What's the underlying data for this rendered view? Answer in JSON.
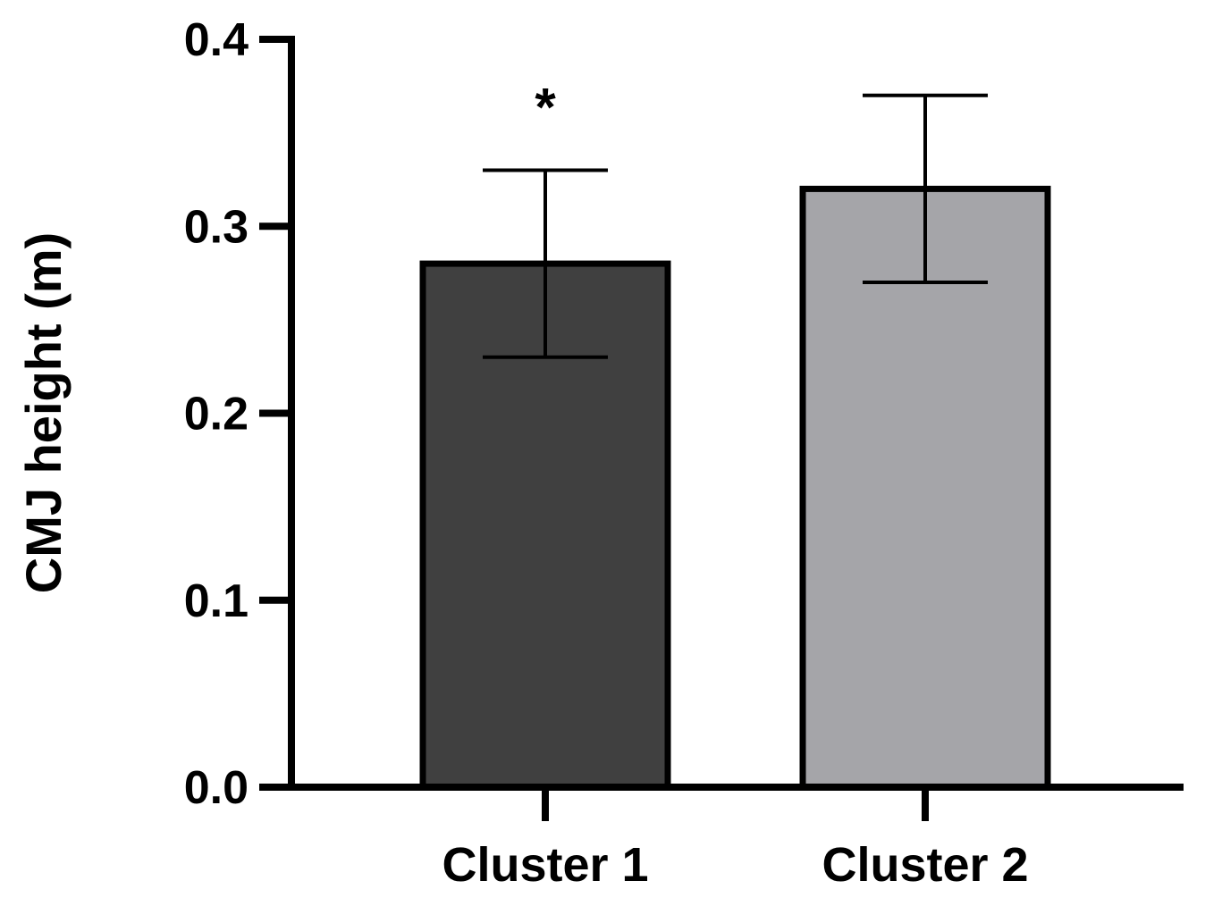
{
  "chart_data": {
    "type": "bar",
    "title": "",
    "xlabel": "",
    "ylabel": "CMJ height (m)",
    "ylim": [
      0,
      0.4
    ],
    "yticks": [
      0.0,
      0.1,
      0.2,
      0.3,
      0.4
    ],
    "ytick_labels": [
      "0.0",
      "0.1",
      "0.2",
      "0.3",
      "0.4"
    ],
    "categories": [
      "Cluster 1",
      "Cluster 2"
    ],
    "values": [
      0.28,
      0.32
    ],
    "errors": [
      0.05,
      0.05
    ],
    "colors": [
      "#404040",
      "#a5a5a9"
    ],
    "annotations": [
      {
        "category": "Cluster 1",
        "text": "*"
      }
    ],
    "grid": false,
    "legend": "none"
  }
}
